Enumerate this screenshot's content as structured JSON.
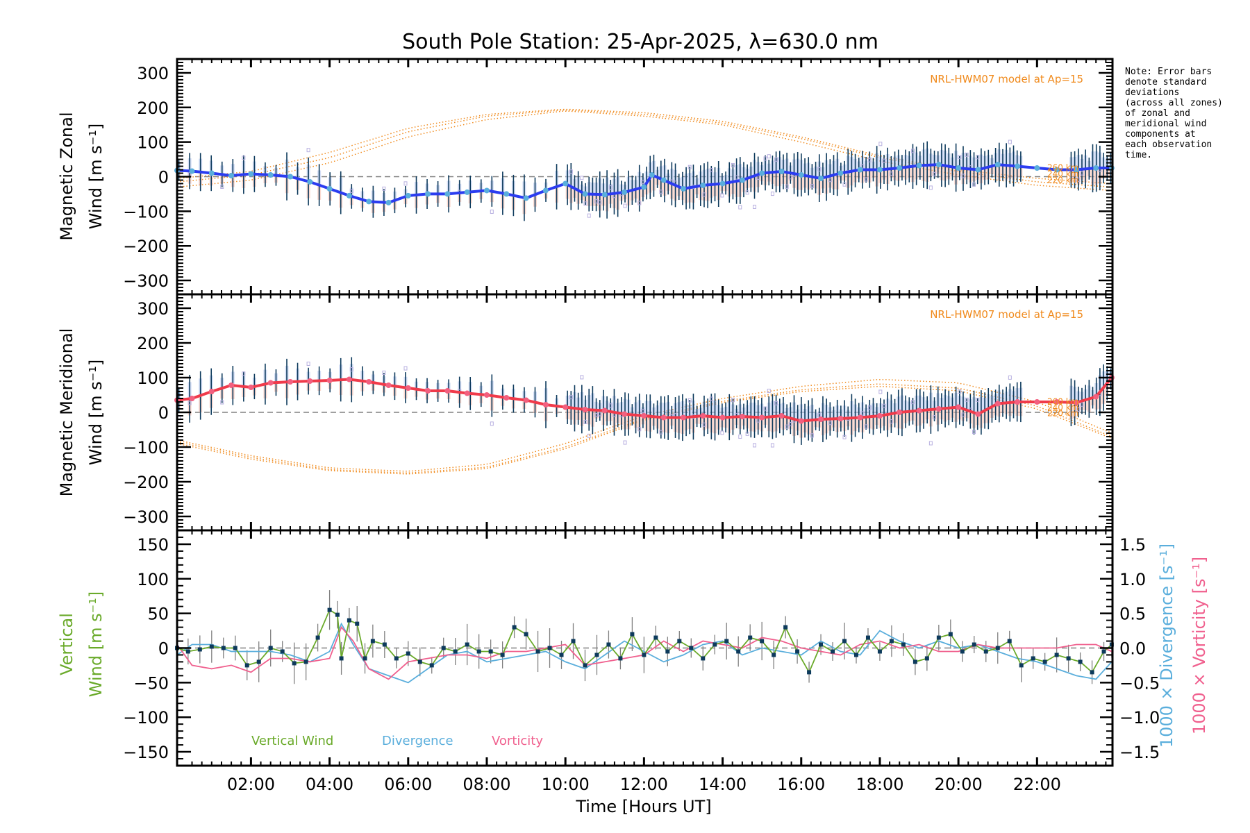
{
  "title": "South Pole Station: 25-Apr-2025, λ=630.0 nm",
  "note": "Note: Error bars\ndenote standard\ndeviations\n(across all zones)\nof zonal and\nmeridional wind\ncomponents at\neach observation\ntime.",
  "colors": {
    "zonal_line": "#2b3cf0",
    "zonal_marker": "#5aaedc",
    "meridional_line": "#f03a4a",
    "meridional_marker": "#f2607f",
    "model": "#f08a1c",
    "error_bar": "#0d3a5c",
    "zone_scatter": "#b8b0e0",
    "vertical": "#6aaa2a",
    "divergence": "#5aaedc",
    "vorticity": "#f0608e",
    "vertical_marker": "#0d3a5c",
    "vertical_err": "#808080"
  },
  "chart_data": [
    {
      "id": "zonal",
      "type": "line",
      "ylabel_line1": "Magnetic Zonal",
      "ylabel_line2": "Wind [m s⁻¹]",
      "ylim": [
        -340,
        340
      ],
      "yticks": [
        -300,
        -200,
        -100,
        0,
        100,
        200,
        300
      ],
      "ytick_labels": [
        "−300",
        "−200",
        "−100",
        "0",
        "100",
        "200",
        "300"
      ],
      "model_label": "NRL-HWM07 model at Ap=15",
      "model_altitude_labels": [
        "260 km",
        "240 km",
        "220 km"
      ],
      "series": [
        {
          "name": "Zonal wind",
          "x": [
            0.12,
            0.5,
            1.0,
            1.5,
            2.0,
            2.5,
            3.0,
            3.5,
            4.0,
            4.5,
            5.0,
            5.5,
            6.0,
            6.5,
            7.0,
            7.5,
            8.0,
            8.5,
            9.0,
            9.5,
            10.0,
            10.5,
            11.0,
            11.5,
            12.0,
            12.2,
            12.5,
            13.0,
            13.5,
            14.0,
            14.5,
            15.0,
            15.5,
            16.0,
            16.5,
            17.0,
            17.5,
            18.0,
            18.5,
            19.0,
            19.5,
            20.0,
            20.5,
            21.0,
            21.5,
            22.0,
            22.5,
            23.0,
            23.5,
            23.9
          ],
          "y": [
            18,
            16,
            10,
            3,
            8,
            5,
            0,
            -15,
            -35,
            -55,
            -72,
            -75,
            -55,
            -50,
            -50,
            -45,
            -40,
            -50,
            -62,
            -40,
            -20,
            -50,
            -52,
            -45,
            -30,
            5,
            -10,
            -35,
            -25,
            -20,
            -10,
            10,
            15,
            5,
            -5,
            10,
            20,
            20,
            25,
            32,
            35,
            25,
            20,
            35,
            30,
            25,
            20,
            20,
            25,
            25
          ]
        }
      ],
      "model_series": [
        {
          "name": "260 km",
          "x": [
            0.12,
            2,
            4,
            6,
            8,
            10,
            12,
            14,
            16,
            18,
            20,
            22,
            23.9
          ],
          "y": [
            -5,
            15,
            70,
            140,
            180,
            195,
            185,
            160,
            115,
            60,
            20,
            -5,
            -20
          ]
        },
        {
          "name": "240 km",
          "x": [
            0.12,
            2,
            4,
            6,
            8,
            10,
            12,
            14,
            16,
            18,
            20,
            22,
            23.9
          ],
          "y": [
            -15,
            5,
            55,
            130,
            175,
            193,
            180,
            155,
            110,
            55,
            15,
            -15,
            -30
          ]
        },
        {
          "name": "220 km",
          "x": [
            0.12,
            2,
            4,
            6,
            8,
            10,
            12,
            14,
            16,
            18,
            20,
            22,
            23.9
          ],
          "y": [
            -30,
            -10,
            40,
            115,
            165,
            190,
            175,
            150,
            100,
            45,
            5,
            -25,
            -40
          ]
        }
      ]
    },
    {
      "id": "meridional",
      "type": "line",
      "ylabel_line1": "Magnetic Meridional",
      "ylabel_line2": "Wind [m s⁻¹]",
      "ylim": [
        -340,
        340
      ],
      "yticks": [
        -300,
        -200,
        -100,
        0,
        100,
        200,
        300
      ],
      "ytick_labels": [
        "−300",
        "−200",
        "−100",
        "0",
        "100",
        "200",
        "300"
      ],
      "model_label": "NRL-HWM07 model at Ap=15",
      "model_altitude_labels": [
        "260 km",
        "240 km",
        "220 km"
      ],
      "series": [
        {
          "name": "Meridional wind",
          "x": [
            0.12,
            0.5,
            1.0,
            1.5,
            2.0,
            2.5,
            3.0,
            3.5,
            4.0,
            4.5,
            5.0,
            5.5,
            6.0,
            6.5,
            7.0,
            7.5,
            8.0,
            8.5,
            9.0,
            9.5,
            10.0,
            10.5,
            11.0,
            11.5,
            12.0,
            12.5,
            13.0,
            13.5,
            14.0,
            14.5,
            15.0,
            15.5,
            16.0,
            16.5,
            17.0,
            17.5,
            18.0,
            18.5,
            19.0,
            19.5,
            20.0,
            20.5,
            21.0,
            21.5,
            22.0,
            22.5,
            23.0,
            23.5,
            23.9
          ],
          "y": [
            35,
            40,
            60,
            78,
            72,
            85,
            88,
            90,
            92,
            95,
            88,
            78,
            70,
            62,
            62,
            55,
            50,
            42,
            35,
            22,
            15,
            8,
            5,
            -5,
            -10,
            -15,
            -15,
            -10,
            -15,
            -12,
            -15,
            -10,
            -25,
            -20,
            -18,
            -15,
            -10,
            0,
            5,
            10,
            15,
            -5,
            25,
            30,
            30,
            30,
            28,
            45,
            100
          ]
        }
      ],
      "model_series": [
        {
          "name": "260 km",
          "x": [
            0.12,
            2,
            4,
            6,
            8,
            10,
            12,
            14,
            16,
            18,
            20,
            22,
            23.9
          ],
          "y": [
            -80,
            -125,
            -160,
            -170,
            -150,
            -90,
            -10,
            40,
            75,
            95,
            85,
            30,
            -60
          ]
        },
        {
          "name": "240 km",
          "x": [
            0.12,
            2,
            4,
            6,
            8,
            10,
            12,
            14,
            16,
            18,
            20,
            22,
            23.9
          ],
          "y": [
            -85,
            -130,
            -165,
            -175,
            -158,
            -100,
            -18,
            32,
            65,
            82,
            70,
            18,
            -70
          ]
        },
        {
          "name": "220 km",
          "x": [
            0.12,
            2,
            4,
            6,
            8,
            10,
            12,
            14,
            16,
            18,
            20,
            22,
            23.9
          ],
          "y": [
            -90,
            -135,
            -168,
            -178,
            -162,
            -105,
            -22,
            28,
            60,
            75,
            62,
            10,
            -75
          ]
        }
      ]
    },
    {
      "id": "vertical",
      "type": "line",
      "ylabel_line1": "Vertical",
      "ylabel_line2": "Wind [m s⁻¹]",
      "ylim": [
        -170,
        170
      ],
      "yticks": [
        -150,
        -100,
        -50,
        0,
        50,
        100,
        150
      ],
      "ytick_labels": [
        "−150",
        "−100",
        "−50",
        "0",
        "50",
        "100",
        "150"
      ],
      "y2lim": [
        -1.7,
        1.7
      ],
      "y2ticks": [
        -1.5,
        -1.0,
        -0.5,
        0.0,
        0.5,
        1.0,
        1.5
      ],
      "y2tick_labels": [
        "−1.5",
        "−1.0",
        "−0.5",
        "0.0",
        "0.5",
        "1.0",
        "1.5"
      ],
      "y2label_divergence": "1000 × Divergence [s⁻¹]",
      "y2label_vorticity": "1000 × Vorticity [s⁻¹]",
      "legend": [
        "Vertical Wind",
        "Divergence",
        "Vorticity"
      ],
      "legend_placement": "bottom-left",
      "series": [
        {
          "name": "Vertical Wind",
          "x": [
            0.12,
            0.4,
            0.7,
            1.0,
            1.3,
            1.6,
            1.9,
            2.2,
            2.5,
            2.8,
            3.1,
            3.4,
            3.7,
            4.0,
            4.2,
            4.3,
            4.5,
            4.7,
            4.9,
            5.1,
            5.4,
            5.7,
            6.0,
            6.3,
            6.6,
            6.9,
            7.2,
            7.5,
            7.8,
            8.1,
            8.4,
            8.7,
            9.0,
            9.3,
            9.6,
            9.9,
            10.2,
            10.5,
            10.8,
            11.1,
            11.4,
            11.7,
            12.0,
            12.3,
            12.6,
            12.9,
            13.2,
            13.5,
            13.8,
            14.1,
            14.4,
            14.7,
            15.0,
            15.3,
            15.6,
            15.9,
            16.2,
            16.5,
            16.8,
            17.1,
            17.4,
            17.7,
            18.0,
            18.3,
            18.6,
            18.9,
            19.2,
            19.5,
            19.8,
            20.1,
            20.4,
            20.7,
            21.0,
            21.3,
            21.6,
            21.9,
            22.2,
            22.5,
            22.8,
            23.1,
            23.4,
            23.7,
            23.9
          ],
          "y": [
            0,
            -5,
            -2,
            2,
            0,
            0,
            -25,
            -20,
            0,
            -5,
            -22,
            -20,
            15,
            55,
            48,
            -15,
            40,
            35,
            -15,
            10,
            5,
            -15,
            -8,
            -20,
            -25,
            0,
            -5,
            5,
            -5,
            -5,
            -10,
            30,
            20,
            -5,
            0,
            -10,
            10,
            -25,
            -10,
            5,
            -15,
            20,
            -10,
            15,
            -5,
            10,
            0,
            -15,
            5,
            10,
            -5,
            15,
            10,
            -10,
            30,
            -5,
            -35,
            5,
            -5,
            10,
            -10,
            15,
            -5,
            10,
            5,
            -20,
            -15,
            15,
            20,
            -5,
            5,
            -5,
            0,
            10,
            -25,
            -15,
            -20,
            -10,
            -15,
            -20,
            -35,
            -5,
            5
          ]
        },
        {
          "name": "Divergence",
          "axis": "y2",
          "x": [
            0.12,
            0.5,
            1.0,
            1.5,
            2.0,
            2.5,
            3.0,
            3.5,
            4.0,
            4.3,
            4.6,
            5.0,
            5.5,
            6.0,
            6.5,
            7.0,
            7.5,
            8.0,
            8.5,
            9.0,
            9.5,
            10.0,
            10.5,
            11.0,
            11.5,
            12.0,
            12.5,
            13.0,
            13.5,
            14.0,
            14.5,
            15.0,
            15.5,
            16.0,
            16.5,
            17.0,
            17.5,
            18.0,
            18.5,
            19.0,
            19.5,
            20.0,
            20.5,
            21.0,
            21.5,
            22.0,
            22.5,
            23.0,
            23.5,
            23.9
          ],
          "x_note": "values are 1000 x divergence",
          "y": [
            -0.1,
            0.05,
            0.05,
            -0.05,
            -0.05,
            -0.05,
            -0.1,
            -0.2,
            -0.05,
            0.35,
            0.05,
            -0.3,
            -0.4,
            -0.5,
            -0.3,
            -0.1,
            -0.05,
            -0.2,
            -0.15,
            -0.1,
            -0.05,
            -0.2,
            -0.3,
            -0.1,
            0.1,
            -0.05,
            -0.2,
            -0.1,
            0.05,
            0.1,
            -0.1,
            0.0,
            -0.05,
            -0.1,
            0.1,
            -0.05,
            -0.1,
            0.25,
            0.1,
            0.0,
            0.1,
            0.0,
            0.05,
            -0.05,
            -0.15,
            -0.2,
            -0.3,
            -0.4,
            -0.45,
            -0.2
          ]
        },
        {
          "name": "Vorticity",
          "axis": "y2",
          "x": [
            0.12,
            0.5,
            1.0,
            1.5,
            2.0,
            2.5,
            3.0,
            3.5,
            4.0,
            4.3,
            4.6,
            5.0,
            5.5,
            6.0,
            6.5,
            7.0,
            7.5,
            8.0,
            8.5,
            9.0,
            9.5,
            10.0,
            10.5,
            11.0,
            11.5,
            12.0,
            12.5,
            13.0,
            13.5,
            14.0,
            14.5,
            15.0,
            15.5,
            16.0,
            16.5,
            17.0,
            17.5,
            18.0,
            18.5,
            19.0,
            19.5,
            20.0,
            20.5,
            21.0,
            21.5,
            22.0,
            22.5,
            23.0,
            23.5,
            23.9
          ],
          "y": [
            0.05,
            -0.25,
            -0.3,
            -0.25,
            -0.35,
            -0.15,
            -0.15,
            -0.2,
            -0.15,
            0.3,
            0.1,
            -0.3,
            -0.45,
            -0.2,
            -0.15,
            -0.1,
            -0.1,
            -0.15,
            -0.05,
            -0.05,
            0.0,
            0.05,
            -0.25,
            -0.2,
            -0.15,
            -0.1,
            0.1,
            -0.05,
            0.1,
            0.05,
            0.0,
            0.15,
            0.1,
            0.0,
            -0.05,
            -0.1,
            0.05,
            0.1,
            0.0,
            0.05,
            -0.05,
            -0.05,
            0.05,
            0.0,
            0.0,
            0.0,
            0.0,
            0.05,
            0.05,
            -0.05
          ]
        }
      ]
    }
  ],
  "xaxis": {
    "xlabel": "Time [Hours UT]",
    "xlim": [
      0.12,
      23.92
    ],
    "xticks": [
      2,
      4,
      6,
      8,
      10,
      12,
      14,
      16,
      18,
      20,
      22
    ],
    "xtick_labels": [
      "02:00",
      "04:00",
      "06:00",
      "08:00",
      "10:00",
      "12:00",
      "14:00",
      "16:00",
      "18:00",
      "20:00",
      "22:00"
    ]
  }
}
